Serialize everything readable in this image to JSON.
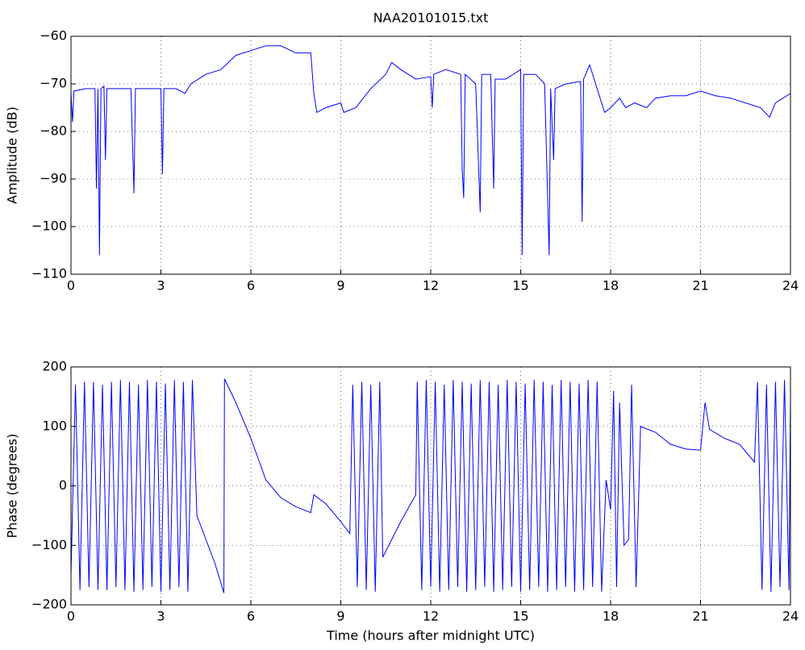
{
  "chart_data": [
    {
      "type": "line",
      "title": "NAA20101015.txt",
      "ylabel": "Amplitude (dB)",
      "color": "#0000ff",
      "grid": true,
      "xlim": [
        0,
        24
      ],
      "xticks": [
        0,
        3,
        6,
        9,
        12,
        15,
        18,
        21,
        24
      ],
      "ylim": [
        -110,
        -60
      ],
      "yticks": [
        {
          "value": -110,
          "label": "−110"
        },
        {
          "value": -100,
          "label": "−100"
        },
        {
          "value": -90,
          "label": "−90"
        },
        {
          "value": -80,
          "label": "−80"
        },
        {
          "value": -70,
          "label": "−70"
        },
        {
          "value": -60,
          "label": "−60"
        }
      ],
      "x": [
        0,
        0.05,
        0.1,
        0.5,
        0.8,
        0.85,
        0.9,
        0.95,
        1.0,
        1.1,
        1.15,
        1.2,
        2.0,
        2.05,
        2.1,
        2.15,
        3.0,
        3.05,
        3.1,
        3.5,
        3.8,
        4.0,
        4.5,
        5.0,
        5.5,
        6.0,
        6.5,
        7.0,
        7.5,
        8.0,
        8.1,
        8.2,
        8.5,
        9.0,
        9.1,
        9.5,
        10.0,
        10.5,
        10.7,
        11.0,
        11.5,
        12.0,
        12.05,
        12.1,
        12.5,
        13.0,
        13.05,
        13.1,
        13.15,
        13.5,
        13.65,
        13.7,
        14.0,
        14.1,
        14.15,
        14.5,
        15.0,
        15.05,
        15.1,
        15.5,
        15.8,
        15.95,
        16.0,
        16.1,
        16.15,
        16.5,
        17.0,
        17.05,
        17.1,
        17.3,
        17.5,
        17.8,
        18.0,
        18.3,
        18.5,
        18.8,
        19.2,
        19.5,
        20.0,
        20.5,
        21.0,
        21.5,
        22.0,
        22.5,
        23.0,
        23.3,
        23.5,
        24.0
      ],
      "values": [
        -72,
        -78,
        -71.5,
        -71,
        -71,
        -92,
        -71,
        -106,
        -71,
        -70.5,
        -86,
        -71,
        -71,
        -82,
        -93,
        -71,
        -71,
        -89,
        -71,
        -71,
        -72,
        -70,
        -68,
        -67,
        -64,
        -63,
        -62,
        -62,
        -63.5,
        -63.5,
        -72,
        -76,
        -75,
        -74,
        -76,
        -75,
        -71,
        -68,
        -65.5,
        -67,
        -69,
        -68.5,
        -75,
        -68,
        -67,
        -68,
        -88,
        -94,
        -68,
        -70,
        -97,
        -68,
        -68,
        -92,
        -69,
        -69,
        -67,
        -106,
        -68,
        -68,
        -70,
        -106,
        -71,
        -86,
        -71,
        -70,
        -69.5,
        -99,
        -69,
        -66,
        -70,
        -76,
        -75,
        -73,
        -75,
        -74,
        -75,
        -73,
        -72.5,
        -72.5,
        -71.5,
        -72.5,
        -73,
        -74,
        -75,
        -77,
        -74,
        -72
      ]
    },
    {
      "type": "line",
      "xlabel": "Time (hours after midnight UTC)",
      "ylabel": "Phase (degrees)",
      "color": "#0000ff",
      "grid": true,
      "xlim": [
        0,
        24
      ],
      "xticks": [
        0,
        3,
        6,
        9,
        12,
        15,
        18,
        21,
        24
      ],
      "ylim": [
        -200,
        200
      ],
      "yticks": [
        {
          "value": -200,
          "label": "−200"
        },
        {
          "value": -100,
          "label": "−100"
        },
        0,
        100,
        200
      ],
      "x": [
        0,
        0.15,
        0.3,
        0.45,
        0.6,
        0.75,
        0.9,
        1.05,
        1.2,
        1.35,
        1.5,
        1.65,
        1.8,
        1.95,
        2.1,
        2.25,
        2.4,
        2.55,
        2.7,
        2.85,
        3.0,
        3.15,
        3.3,
        3.45,
        3.6,
        3.75,
        3.9,
        4.05,
        4.2,
        4.5,
        4.8,
        5.1,
        5.12,
        5.5,
        6.0,
        6.5,
        7.0,
        7.5,
        8.0,
        8.1,
        8.5,
        9.0,
        9.3,
        9.4,
        9.55,
        9.7,
        9.85,
        10.0,
        10.15,
        10.3,
        10.4,
        11.0,
        11.5,
        11.55,
        11.7,
        11.85,
        12.0,
        12.15,
        12.3,
        12.45,
        12.6,
        12.75,
        12.9,
        13.05,
        13.2,
        13.35,
        13.5,
        13.65,
        13.8,
        13.95,
        14.1,
        14.25,
        14.4,
        14.55,
        14.7,
        14.85,
        15.0,
        15.15,
        15.3,
        15.45,
        15.6,
        15.75,
        15.9,
        16.05,
        16.2,
        16.35,
        16.5,
        16.65,
        16.8,
        16.95,
        17.1,
        17.25,
        17.4,
        17.55,
        17.7,
        17.85,
        18.0,
        18.1,
        18.2,
        18.3,
        18.45,
        18.6,
        18.7,
        18.85,
        19.0,
        19.5,
        20.0,
        20.5,
        21.0,
        21.15,
        21.3,
        21.8,
        22.3,
        22.8,
        22.9,
        23.05,
        23.2,
        23.35,
        23.5,
        23.65,
        23.8,
        23.95,
        24.0
      ],
      "values": [
        -150,
        170,
        -175,
        175,
        -170,
        175,
        -175,
        170,
        -175,
        175,
        -170,
        178,
        -175,
        175,
        -178,
        170,
        -175,
        178,
        -170,
        175,
        -178,
        172,
        -175,
        178,
        -170,
        175,
        -178,
        178,
        -50,
        -90,
        -130,
        -180,
        180,
        140,
        80,
        10,
        -20,
        -35,
        -45,
        -15,
        -30,
        -60,
        -80,
        170,
        -170,
        175,
        -175,
        170,
        -178,
        175,
        -120,
        -60,
        -15,
        175,
        -175,
        178,
        -170,
        175,
        -178,
        170,
        -175,
        178,
        -170,
        175,
        -178,
        172,
        -175,
        178,
        -170,
        175,
        -178,
        170,
        -175,
        178,
        -170,
        175,
        -178,
        172,
        -175,
        178,
        -170,
        175,
        -178,
        170,
        -175,
        178,
        -170,
        175,
        -178,
        172,
        -175,
        178,
        -170,
        175,
        -178,
        10,
        -40,
        160,
        -170,
        140,
        -100,
        -90,
        170,
        -170,
        100,
        90,
        70,
        62,
        60,
        140,
        95,
        80,
        70,
        40,
        175,
        -175,
        170,
        -178,
        175,
        -170,
        178,
        -175,
        150
      ]
    }
  ]
}
